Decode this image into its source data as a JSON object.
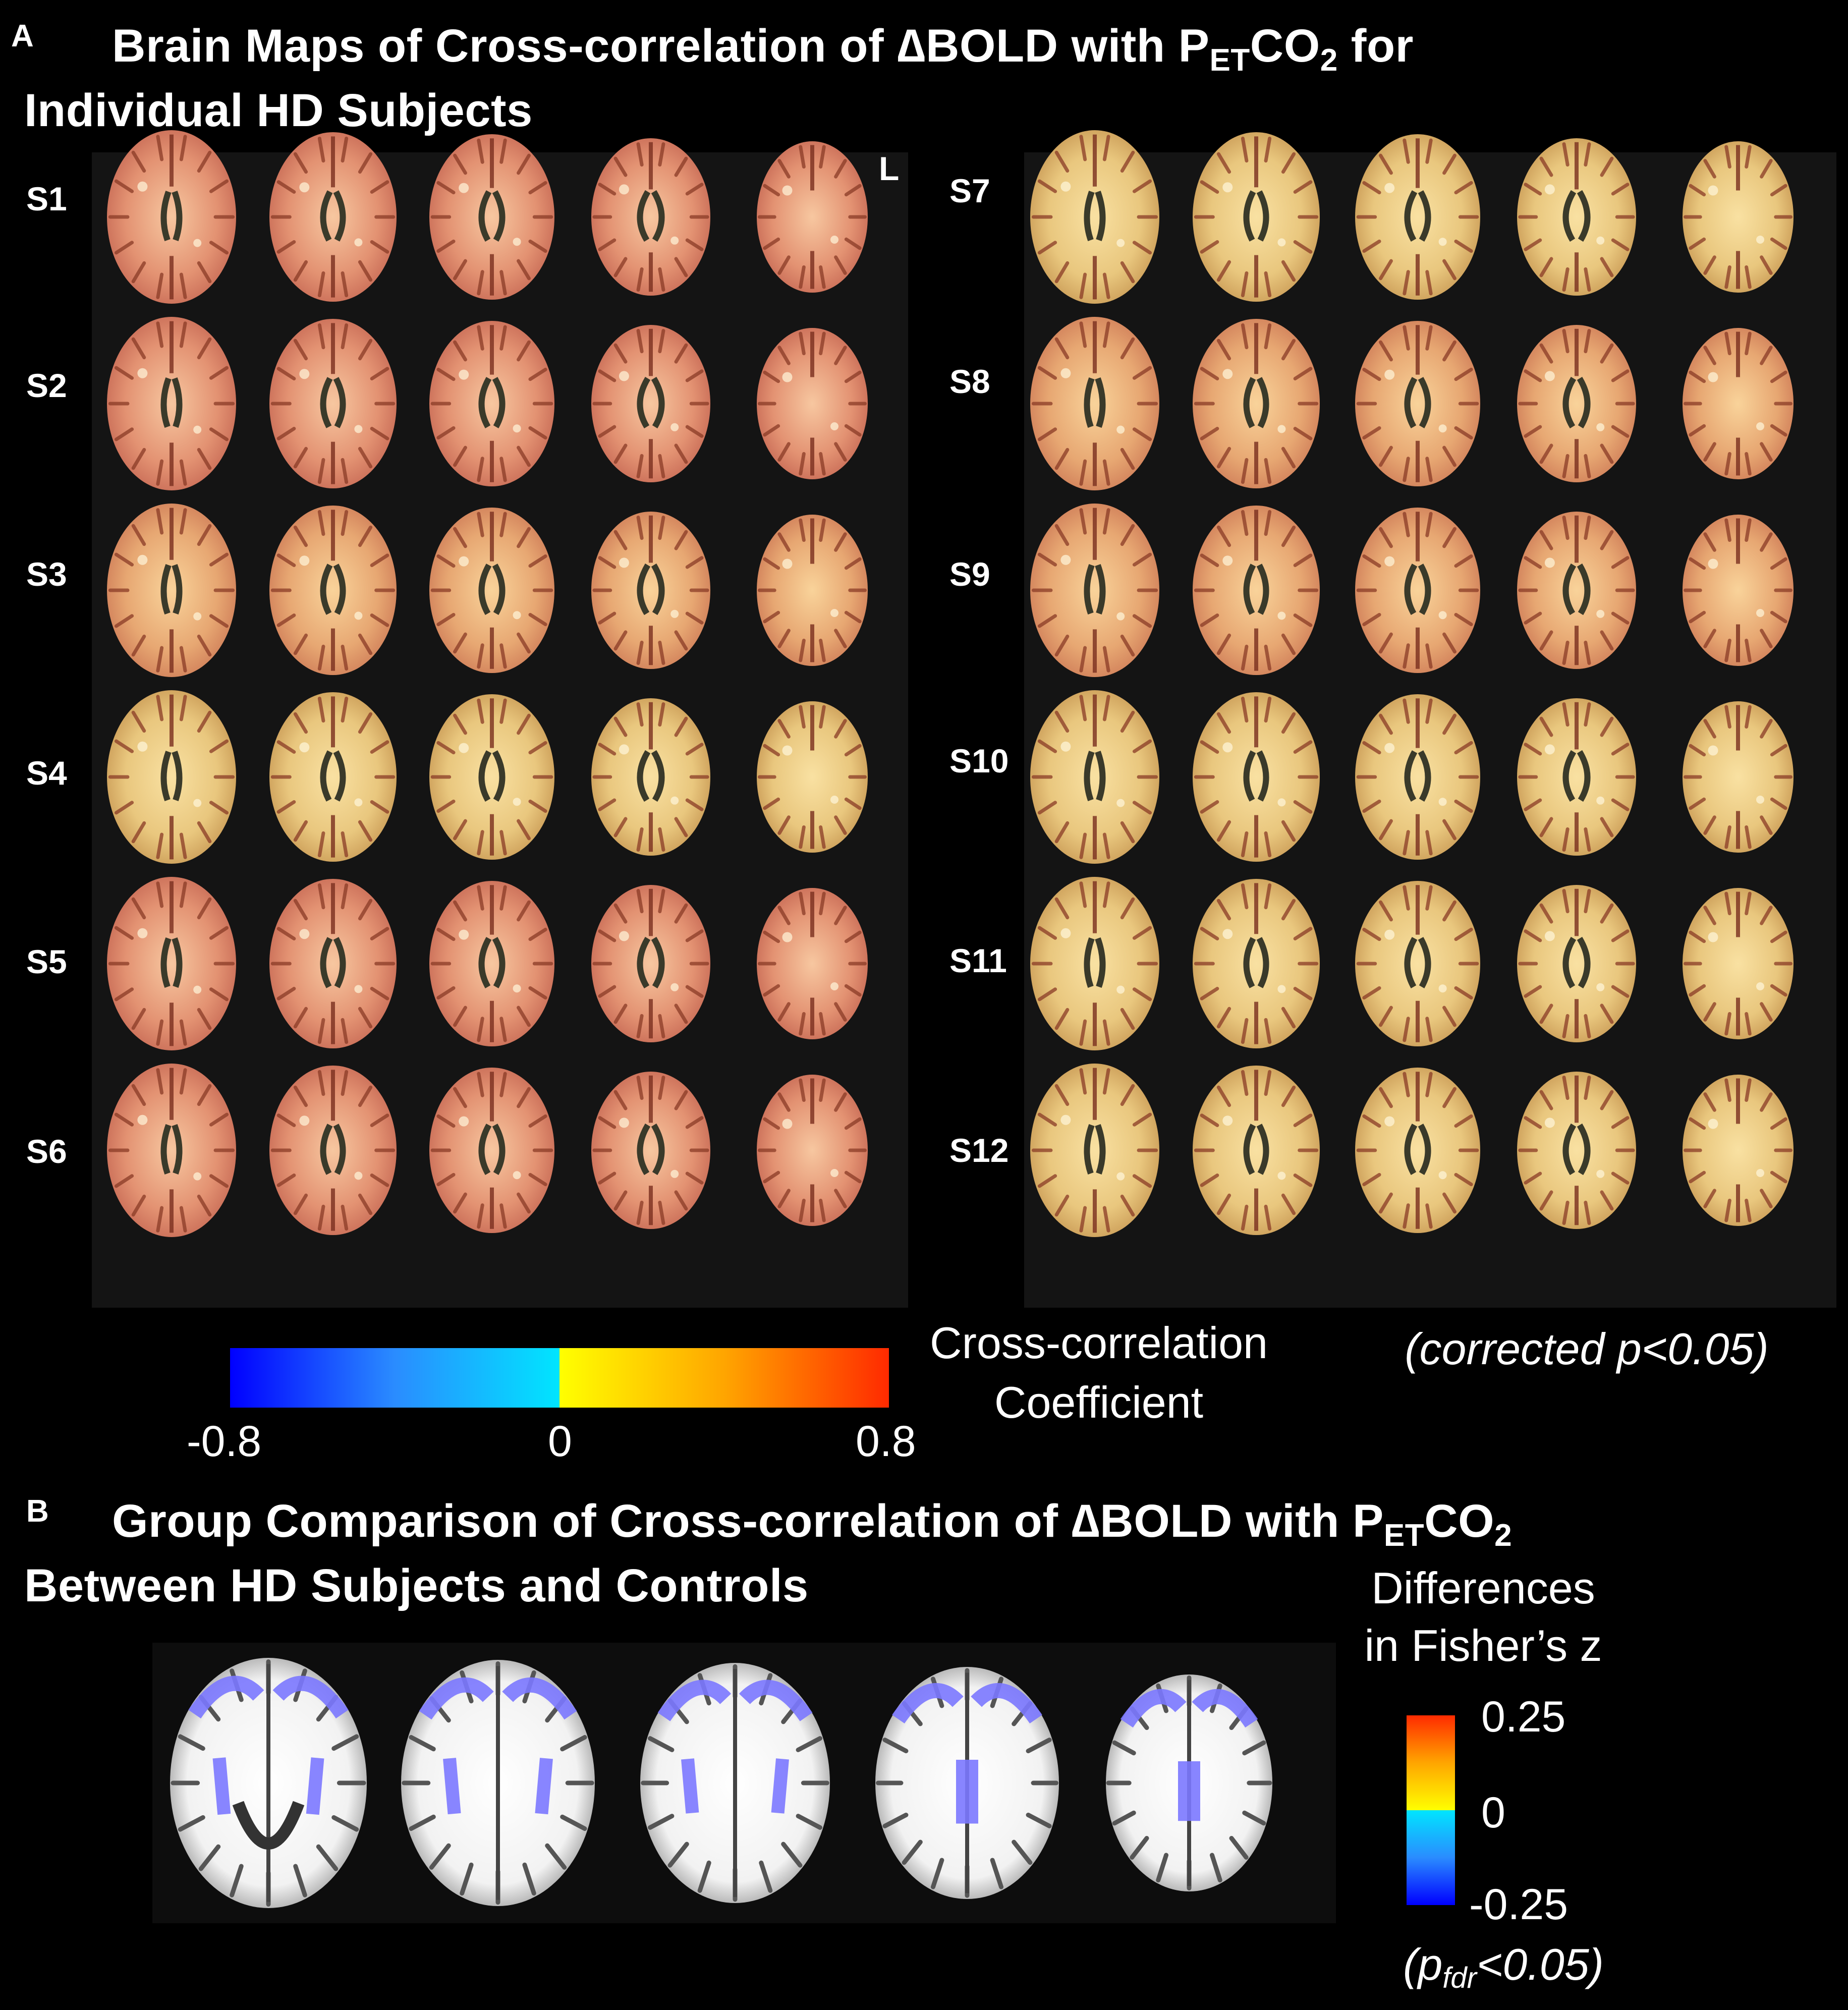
{
  "panel_a": {
    "letter": "A",
    "title_line1_pre": "Brain Maps of Cross-correlation of ∆BOLD with P",
    "title_line1_sub": "ET",
    "title_line1_post": "CO",
    "title_line1_sub2": "2",
    "title_line1_end": " for",
    "title_line2": "Individual HD Subjects",
    "orientation_label": "L",
    "subjects_left": [
      "S1",
      "S2",
      "S3",
      "S4",
      "S5",
      "S6"
    ],
    "subjects_right": [
      "S7",
      "S8",
      "S9",
      "S10",
      "S11",
      "S12"
    ],
    "colorbar": {
      "label_line1": "Cross-correlation",
      "label_line2": "Coefficient",
      "ticks": [
        "-0.8",
        "0",
        "0.8"
      ],
      "range": [
        -0.8,
        0.8
      ],
      "colors": [
        "#0000ff",
        "#2a8cff",
        "#00e5ff",
        "#ffff00",
        "#ffa500",
        "#ff2a00"
      ]
    },
    "significance": "(corrected p<0.05)"
  },
  "panel_b": {
    "letter": "B",
    "title_line1_pre": "Group Comparison of Cross-correlation of ∆BOLD with P",
    "title_line1_sub": "ET",
    "title_line1_post": "CO",
    "title_line1_sub2": "2",
    "title_line2": "Between HD Subjects and Controls",
    "legend_title_line1": "Differences",
    "legend_title_line2": "in Fisher’s z",
    "colorbar": {
      "ticks": [
        "0.25",
        "0",
        "-0.25"
      ],
      "range": [
        -0.25,
        0.25
      ],
      "colors": [
        "#ff2a00",
        "#ffa500",
        "#ffff00",
        "#00e5ff",
        "#2a8cff",
        "#0000ff"
      ]
    },
    "significance_pre": "(p",
    "significance_sub": "fdr",
    "significance_post": "<0.05)"
  }
}
